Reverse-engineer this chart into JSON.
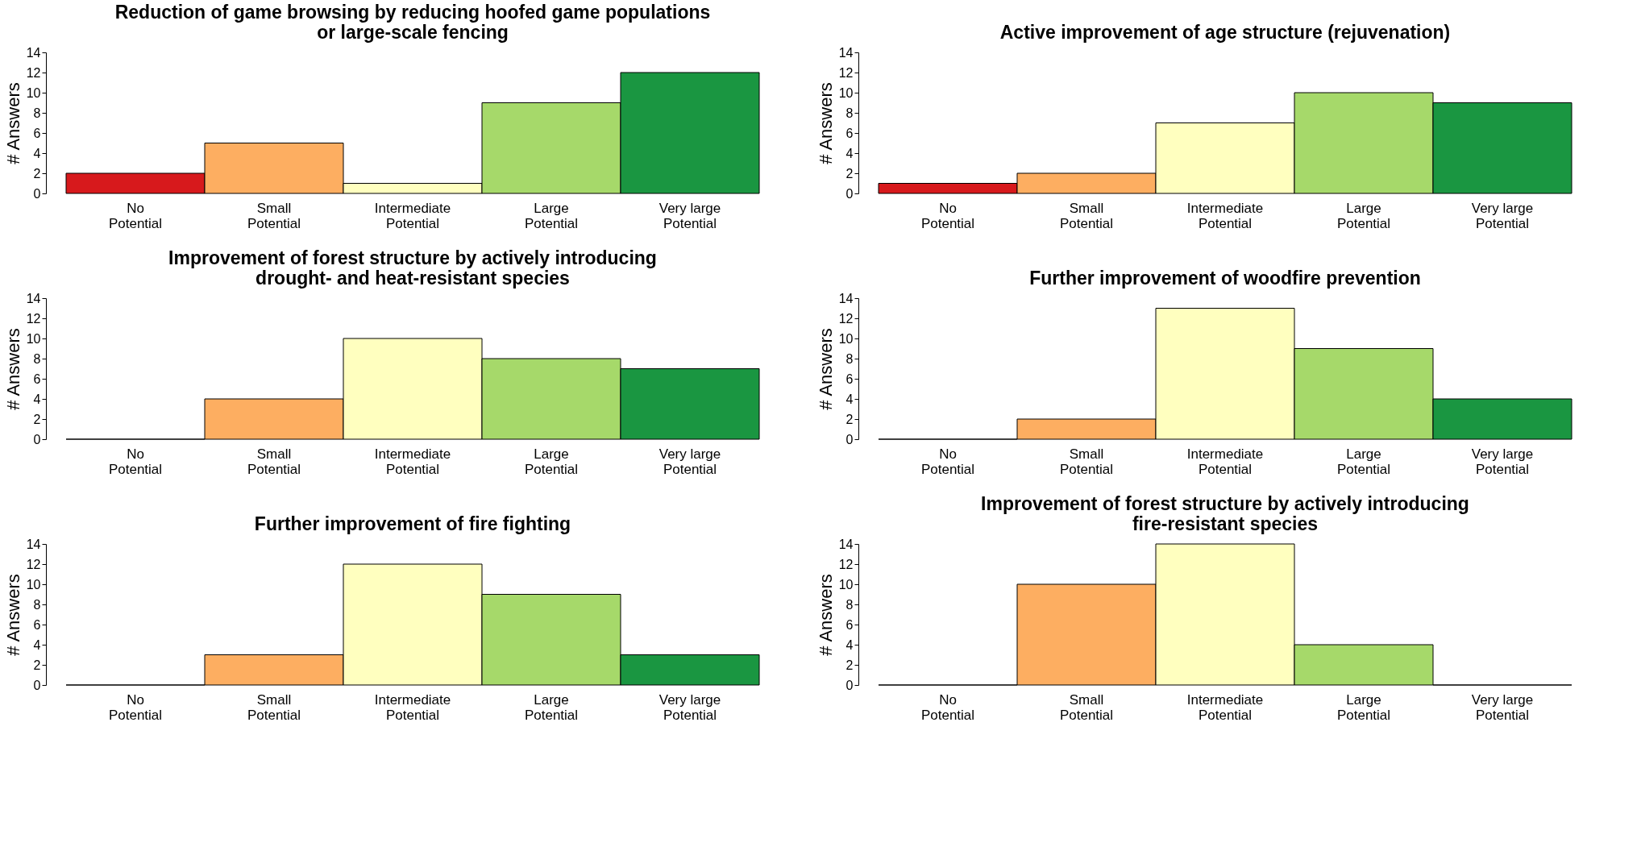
{
  "chart_data": [
    {
      "type": "bar",
      "title": "Reduction of game browsing by reducing hoofed game populations\nor large-scale fencing",
      "ylabel": "# Answers",
      "categories": [
        "No\nPotential",
        "Small\nPotential",
        "Intermediate\nPotential",
        "Large\nPotential",
        "Very large\nPotential"
      ],
      "values": [
        2,
        5,
        1,
        9,
        12
      ],
      "colors": [
        "#d7191c",
        "#fdae61",
        "#ffffbf",
        "#a6d96a",
        "#1a9641"
      ],
      "ylim": [
        0,
        14
      ],
      "yticks": [
        0,
        2,
        4,
        6,
        8,
        10,
        12,
        14
      ],
      "grid": false,
      "legend": false
    },
    {
      "type": "bar",
      "title": "Active improvement of age structure (rejuvenation)",
      "ylabel": "# Answers",
      "categories": [
        "No\nPotential",
        "Small\nPotential",
        "Intermediate\nPotential",
        "Large\nPotential",
        "Very large\nPotential"
      ],
      "values": [
        1,
        2,
        7,
        10,
        9
      ],
      "colors": [
        "#d7191c",
        "#fdae61",
        "#ffffbf",
        "#a6d96a",
        "#1a9641"
      ],
      "ylim": [
        0,
        14
      ],
      "yticks": [
        0,
        2,
        4,
        6,
        8,
        10,
        12,
        14
      ],
      "grid": false,
      "legend": false
    },
    {
      "type": "bar",
      "title": "Improvement of forest structure by actively introducing\ndrought- and heat-resistant species",
      "ylabel": "# Answers",
      "categories": [
        "No\nPotential",
        "Small\nPotential",
        "Intermediate\nPotential",
        "Large\nPotential",
        "Very large\nPotential"
      ],
      "values": [
        0,
        4,
        10,
        8,
        7
      ],
      "colors": [
        null,
        "#fdae61",
        "#ffffbf",
        "#a6d96a",
        "#1a9641"
      ],
      "ylim": [
        0,
        14
      ],
      "yticks": [
        0,
        2,
        4,
        6,
        8,
        10,
        12,
        14
      ],
      "grid": false,
      "legend": false
    },
    {
      "type": "bar",
      "title": "Further improvement of woodfire prevention",
      "ylabel": "# Answers",
      "categories": [
        "No\nPotential",
        "Small\nPotential",
        "Intermediate\nPotential",
        "Large\nPotential",
        "Very large\nPotential"
      ],
      "values": [
        0,
        2,
        13,
        9,
        4
      ],
      "colors": [
        null,
        "#fdae61",
        "#ffffbf",
        "#a6d96a",
        "#1a9641"
      ],
      "ylim": [
        0,
        14
      ],
      "yticks": [
        0,
        2,
        4,
        6,
        8,
        10,
        12,
        14
      ],
      "grid": false,
      "legend": false
    },
    {
      "type": "bar",
      "title": "Further improvement of fire fighting",
      "ylabel": "# Answers",
      "categories": [
        "No\nPotential",
        "Small\nPotential",
        "Intermediate\nPotential",
        "Large\nPotential",
        "Very large\nPotential"
      ],
      "values": [
        0,
        3,
        12,
        9,
        3
      ],
      "colors": [
        null,
        "#fdae61",
        "#ffffbf",
        "#a6d96a",
        "#1a9641"
      ],
      "ylim": [
        0,
        14
      ],
      "yticks": [
        0,
        2,
        4,
        6,
        8,
        10,
        12,
        14
      ],
      "grid": false,
      "legend": false
    },
    {
      "type": "bar",
      "title": "Improvement of forest structure by actively introducing\nfire-resistant species",
      "ylabel": "# Answers",
      "categories": [
        "No\nPotential",
        "Small\nPotential",
        "Intermediate\nPotential",
        "Large\nPotential",
        "Very large\nPotential"
      ],
      "values": [
        0,
        10,
        14,
        4,
        0
      ],
      "colors": [
        null,
        "#fdae61",
        "#ffffbf",
        "#a6d96a",
        null
      ],
      "ylim": [
        0,
        14
      ],
      "yticks": [
        0,
        2,
        4,
        6,
        8,
        10,
        12,
        14
      ],
      "grid": false,
      "legend": false
    }
  ]
}
